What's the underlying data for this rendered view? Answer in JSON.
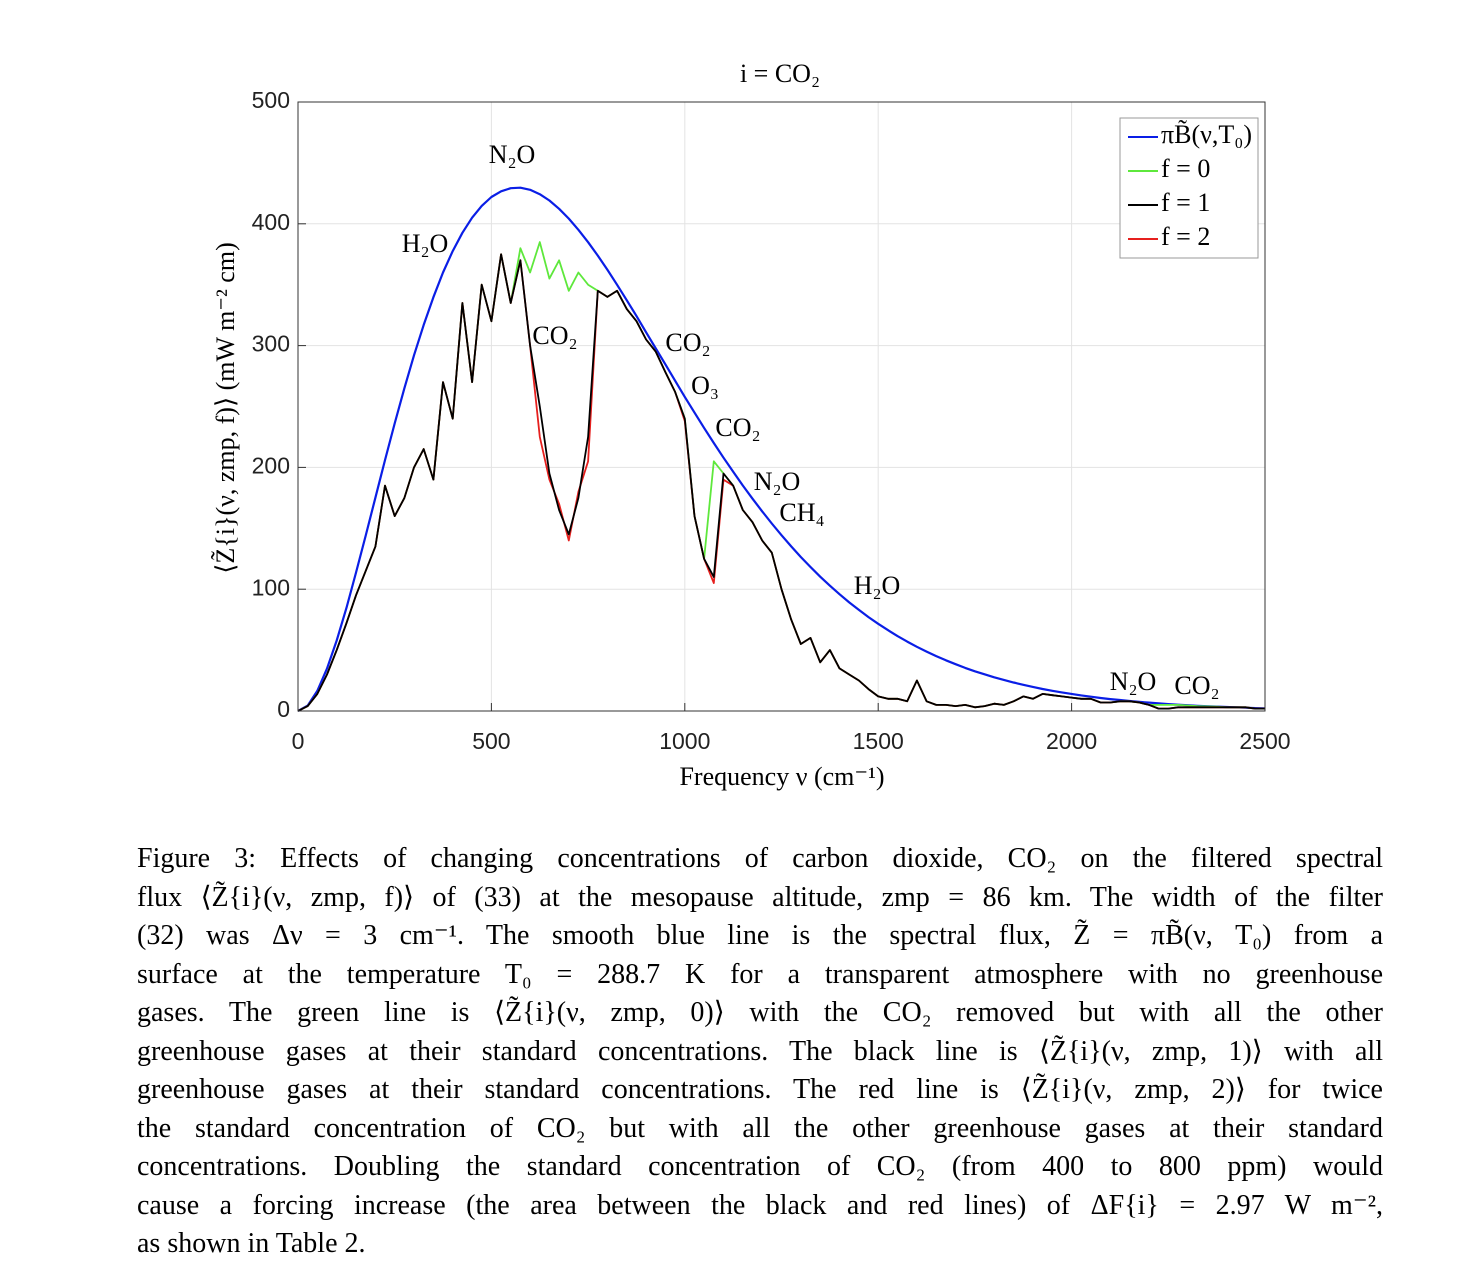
{
  "chart_data": {
    "type": "line",
    "title": "i = CO₂",
    "xlabel": "Frequency ν (cm⁻¹)",
    "ylabel": "⟨Z̃{i}(ν, zmp, f)⟩ (mW m⁻² cm)",
    "xlim": [
      0,
      2500
    ],
    "xticks": [
      0,
      500,
      1000,
      1500,
      2000,
      2500
    ],
    "ylim": [
      0,
      500
    ],
    "yticks": [
      0,
      100,
      200,
      300,
      400,
      500
    ],
    "grid": true,
    "legend": "upper right",
    "x": [
      0,
      25,
      50,
      75,
      100,
      125,
      150,
      175,
      200,
      225,
      250,
      275,
      300,
      325,
      350,
      375,
      400,
      425,
      450,
      475,
      500,
      525,
      550,
      575,
      600,
      625,
      650,
      675,
      700,
      725,
      750,
      775,
      800,
      825,
      850,
      875,
      900,
      925,
      950,
      975,
      1000,
      1025,
      1050,
      1075,
      1100,
      1125,
      1150,
      1175,
      1200,
      1225,
      1250,
      1275,
      1300,
      1325,
      1350,
      1375,
      1400,
      1425,
      1450,
      1475,
      1500,
      1525,
      1550,
      1575,
      1600,
      1625,
      1650,
      1675,
      1700,
      1725,
      1750,
      1775,
      1800,
      1825,
      1850,
      1875,
      1900,
      1925,
      1950,
      1975,
      2000,
      2025,
      2050,
      2075,
      2100,
      2125,
      2150,
      2175,
      2200,
      2225,
      2250,
      2275,
      2300,
      2325,
      2350,
      2375,
      2400,
      2425,
      2450,
      2475,
      2500
    ],
    "series": [
      {
        "name": "πB̃(ν,T₀)",
        "color": "#0a1ee6",
        "values": [
          0,
          4.4,
          16.5,
          34.8,
          57.9,
          84.5,
          113.6,
          144.0,
          175.1,
          206.0,
          236.1,
          265.0,
          292.0,
          317.0,
          339.7,
          360.0,
          377.6,
          392.6,
          405.0,
          414.7,
          422.0,
          426.7,
          429.2,
          429.6,
          427.9,
          424.3,
          419.1,
          412.3,
          404.3,
          395.1,
          384.9,
          373.9,
          362.2,
          349.9,
          337.2,
          324.2,
          310.9,
          297.6,
          284.4,
          271.2,
          257.9,
          245.0,
          232.4,
          220.0,
          208.0,
          196.4,
          185.1,
          174.3,
          163.9,
          153.9,
          144.3,
          135.1,
          126.4,
          118.2,
          110.3,
          102.9,
          95.9,
          89.2,
          83.0,
          77.1,
          71.6,
          66.4,
          61.5,
          57.0,
          52.7,
          48.8,
          45.1,
          41.6,
          38.4,
          35.4,
          32.6,
          30.1,
          27.7,
          25.5,
          23.4,
          21.5,
          19.8,
          18.1,
          16.6,
          15.3,
          14.0,
          12.8,
          11.7,
          10.7,
          9.8,
          9.0,
          8.2,
          7.5,
          6.9,
          6.3,
          5.7,
          5.2,
          4.8,
          4.3,
          3.9,
          3.6,
          3.3,
          3.0,
          2.7,
          2.4,
          2.2
        ]
      },
      {
        "name": "f = 0",
        "color": "#5ee83c",
        "values": [
          0,
          4,
          14,
          30,
          50,
          72,
          95,
          115,
          135,
          185,
          160,
          175,
          200,
          215,
          190,
          270,
          240,
          335,
          270,
          350,
          320,
          375,
          335,
          380,
          360,
          385,
          355,
          370,
          345,
          360,
          350,
          345,
          340,
          345,
          330,
          320,
          305,
          295,
          278,
          262,
          240,
          160,
          125,
          205,
          195,
          185,
          165,
          155,
          140,
          130,
          100,
          75,
          55,
          60,
          40,
          50,
          35,
          30,
          25,
          18,
          12,
          10,
          10,
          8,
          25,
          8,
          5,
          5,
          4,
          5,
          3,
          4,
          6,
          5,
          8,
          12,
          10,
          14,
          13,
          12,
          11,
          10,
          10,
          7,
          7,
          8,
          8,
          7,
          5,
          5,
          5,
          5,
          4.5,
          4,
          3.8,
          3.5,
          3,
          3,
          3,
          2,
          2
        ]
      },
      {
        "name": "f = 1",
        "color": "#000000",
        "values": [
          0,
          4,
          14,
          30,
          50,
          72,
          95,
          115,
          135,
          185,
          160,
          175,
          200,
          215,
          190,
          270,
          240,
          335,
          270,
          350,
          320,
          375,
          335,
          370,
          300,
          250,
          195,
          165,
          145,
          175,
          225,
          345,
          340,
          345,
          330,
          320,
          305,
          295,
          278,
          262,
          240,
          160,
          125,
          110,
          195,
          185,
          165,
          155,
          140,
          130,
          100,
          75,
          55,
          60,
          40,
          50,
          35,
          30,
          25,
          18,
          12,
          10,
          10,
          8,
          25,
          8,
          5,
          5,
          4,
          5,
          3,
          4,
          6,
          5,
          8,
          12,
          10,
          14,
          13,
          12,
          11,
          10,
          10,
          7,
          7,
          8,
          8,
          7,
          5,
          2,
          2,
          3,
          3,
          3,
          3,
          3,
          3,
          3,
          3,
          2,
          2
        ]
      },
      {
        "name": "f = 2",
        "color": "#e6201e",
        "values": [
          0,
          4,
          14,
          30,
          50,
          72,
          95,
          115,
          135,
          185,
          160,
          175,
          200,
          215,
          190,
          270,
          240,
          335,
          270,
          350,
          320,
          375,
          335,
          370,
          300,
          225,
          190,
          170,
          140,
          180,
          205,
          345,
          340,
          345,
          330,
          320,
          305,
          295,
          278,
          262,
          238,
          160,
          125,
          105,
          190,
          185,
          165,
          155,
          140,
          130,
          100,
          75,
          55,
          60,
          40,
          50,
          35,
          30,
          25,
          18,
          12,
          10,
          10,
          8,
          25,
          8,
          5,
          5,
          4,
          5,
          3,
          4,
          6,
          5,
          8,
          12,
          10,
          14,
          13,
          12,
          11,
          10,
          10,
          7,
          7,
          8,
          8,
          7,
          5,
          2,
          2,
          3,
          3,
          3,
          3,
          3,
          3,
          3,
          3,
          2,
          2
        ]
      }
    ],
    "annotations": [
      "H₂O",
      "N₂O",
      "CO₂",
      "CO₂",
      "O₃",
      "CO₂",
      "N₂O",
      "CH₄",
      "H₂O",
      "N₂O",
      "CO₂"
    ]
  },
  "caption": [
    "Figure 3: Effects of changing concentrations of carbon dioxide, CO₂ on the filtered spectral",
    "flux ⟨Z̃{i}(ν, zmp, f)⟩ of (33) at the mesopause altitude, zmp = 86 km. The width of the filter",
    "(32) was Δν = 3 cm⁻¹. The smooth blue line is the spectral flux, Z̃ = πB̃(ν, T₀) from a",
    "surface at the temperature T₀ = 288.7 K for a transparent atmosphere with no greenhouse",
    "gases. The green line is ⟨Z̃{i}(ν, zmp, 0)⟩ with the CO₂ removed but with all the other",
    "greenhouse gases at their standard concentrations. The black line is ⟨Z̃{i}(ν, zmp, 1)⟩ with all",
    "greenhouse gases at their standard concentrations. The red line is ⟨Z̃{i}(ν, zmp, 2)⟩ for twice",
    "the standard concentration of CO₂ but with all the other greenhouse gases at their standard",
    "concentrations. Doubling the standard concentration of CO₂ (from 400 to 800 ppm) would",
    "cause a forcing increase (the area between the black and red lines) of ΔF{i} = 2.97 W m⁻²,",
    "as shown in Table 2."
  ]
}
